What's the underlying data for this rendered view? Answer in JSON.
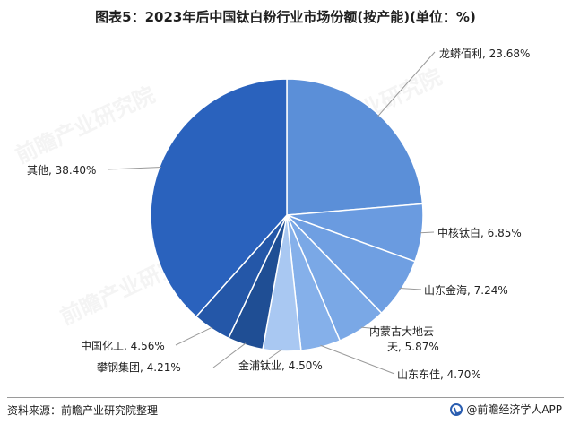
{
  "title": "图表5：2023年后中国钛白粉行业市场份额(按产能)(单位：%)",
  "source": "资料来源：前瞻产业研究院整理",
  "brand": "@前瞻经济学人APP",
  "watermark": "前瞻产业研究院",
  "chart_data": {
    "type": "pie",
    "title": "图表5：2023年后中国钛白粉行业市场份额(按产能)(单位：%)",
    "slices": [
      {
        "name": "龙蟒佰利",
        "value": 23.68,
        "label": "龙蟒佰利, 23.68%",
        "color": "#5b8fd8"
      },
      {
        "name": "中核钛白",
        "value": 6.85,
        "label": "中核钛白, 6.85%",
        "color": "#6a9be0"
      },
      {
        "name": "山东金海",
        "value": 7.24,
        "label": "山东金海, 7.24%",
        "color": "#6f9fe2"
      },
      {
        "name": "内蒙古大地云天",
        "value": 5.87,
        "label_lines": [
          "内蒙古大地云",
          "天, 5.87%"
        ],
        "color": "#7aa8e6"
      },
      {
        "name": "山东东佳",
        "value": 4.7,
        "label": "山东东佳, 4.70%",
        "color": "#85b0ea"
      },
      {
        "name": "金浦钛业",
        "value": 4.5,
        "label": "金浦钛业, 4.50%",
        "color": "#a9c8f2"
      },
      {
        "name": "攀钢集团",
        "value": 4.21,
        "label": "攀钢集团, 4.21%",
        "color": "#1f4e94"
      },
      {
        "name": "中国化工",
        "value": 4.56,
        "label": "中国化工, 4.56%",
        "color": "#2457a8"
      },
      {
        "name": "其他",
        "value": 38.4,
        "label": "其他, 38.40%",
        "color": "#2a62bd"
      }
    ]
  }
}
